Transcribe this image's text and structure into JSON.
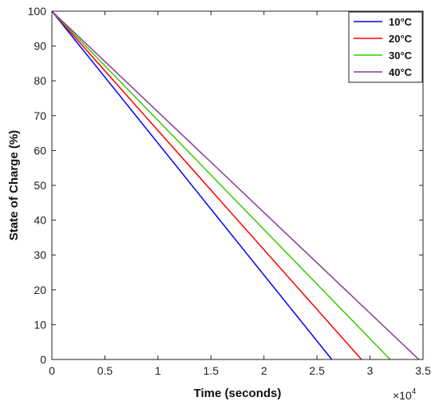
{
  "chart_data": {
    "type": "line",
    "title": "",
    "xlabel": "Time (seconds)",
    "ylabel": "State of Charge (%)",
    "x_exponent_label": "×10",
    "x_exponent_power": "4",
    "xlim": [
      0,
      3.5
    ],
    "ylim": [
      0,
      100
    ],
    "xticks": [
      0,
      0.5,
      1,
      1.5,
      2,
      2.5,
      3,
      3.5
    ],
    "xtick_labels": [
      "0",
      "0.5",
      "1",
      "1.5",
      "2",
      "2.5",
      "3",
      "3.5"
    ],
    "yticks": [
      0,
      10,
      20,
      30,
      40,
      50,
      60,
      70,
      80,
      90,
      100
    ],
    "ytick_labels": [
      "0",
      "10",
      "20",
      "30",
      "40",
      "50",
      "60",
      "70",
      "80",
      "90",
      "100"
    ],
    "grid": false,
    "legend_position": "top-right",
    "series": [
      {
        "name": "10°C",
        "color": "#0000ff",
        "x": [
          0,
          2.64
        ],
        "y": [
          100,
          0
        ]
      },
      {
        "name": "20°C",
        "color": "#ff0000",
        "x": [
          0,
          2.92
        ],
        "y": [
          100,
          0
        ]
      },
      {
        "name": "30°C",
        "color": "#33cc00",
        "x": [
          0,
          3.19
        ],
        "y": [
          100,
          0
        ]
      },
      {
        "name": "40°C",
        "color": "#8b3a96",
        "x": [
          0,
          3.46
        ],
        "y": [
          100,
          0
        ]
      }
    ]
  }
}
